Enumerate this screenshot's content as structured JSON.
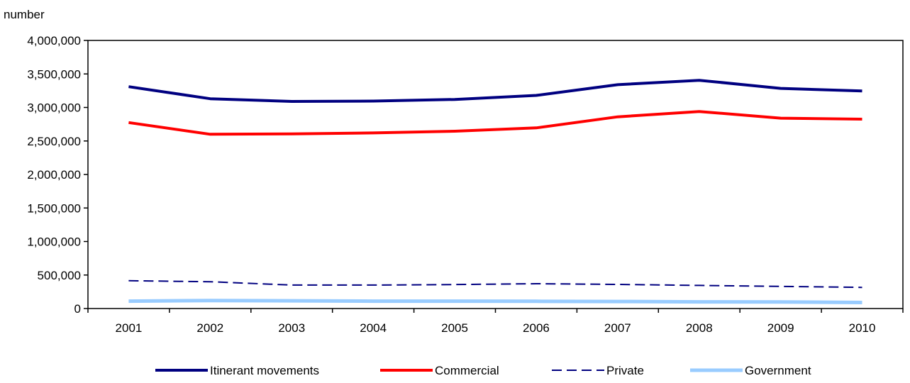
{
  "chart_data": {
    "type": "line",
    "ylabel": "number",
    "xlabel": "",
    "categories": [
      "2001",
      "2002",
      "2003",
      "2004",
      "2005",
      "2006",
      "2007",
      "2008",
      "2009",
      "2010"
    ],
    "ylim": [
      0,
      4000000
    ],
    "yticks": [
      0,
      500000,
      1000000,
      1500000,
      2000000,
      2500000,
      3000000,
      3500000,
      4000000
    ],
    "ytick_labels": [
      "0",
      "500,000",
      "1,000,000",
      "1,500,000",
      "2,000,000",
      "2,500,000",
      "3,000,000",
      "3,500,000",
      "4,000,000"
    ],
    "grid": false,
    "legend_position": "bottom",
    "series": [
      {
        "name": "Itinerant movements",
        "color": "#000080",
        "style": "solid",
        "values": [
          3310000,
          3130000,
          3090000,
          3095000,
          3120000,
          3180000,
          3340000,
          3405000,
          3285000,
          3245000
        ]
      },
      {
        "name": "Commercial",
        "color": "#ff0000",
        "style": "solid",
        "values": [
          2775000,
          2600000,
          2605000,
          2620000,
          2645000,
          2695000,
          2860000,
          2940000,
          2840000,
          2825000
        ]
      },
      {
        "name": "Private",
        "color": "#000080",
        "style": "dashed",
        "values": [
          415000,
          400000,
          350000,
          350000,
          358000,
          370000,
          360000,
          345000,
          330000,
          315000
        ]
      },
      {
        "name": "Government",
        "color": "#99ccff",
        "style": "solid",
        "values": [
          110000,
          120000,
          115000,
          110000,
          110000,
          108000,
          105000,
          100000,
          98000,
          90000
        ]
      }
    ]
  }
}
